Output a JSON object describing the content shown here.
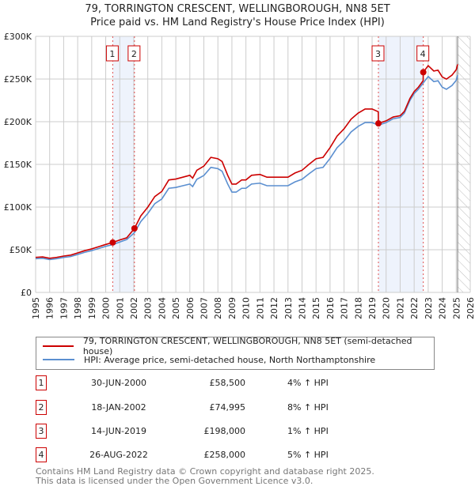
{
  "title": "79, TORRINGTON CRESCENT, WELLINGBOROUGH, NN8 5ET",
  "subtitle": "Price paid vs. HM Land Registry's House Price Index (HPI)",
  "chart_data": {
    "type": "line",
    "xlim": [
      1995,
      2026
    ],
    "ylim": [
      0,
      300000
    ],
    "yticks": [
      {
        "v": 0,
        "label": "£0"
      },
      {
        "v": 50000,
        "label": "£50K"
      },
      {
        "v": 100000,
        "label": "£100K"
      },
      {
        "v": 150000,
        "label": "£150K"
      },
      {
        "v": 200000,
        "label": "£200K"
      },
      {
        "v": 250000,
        "label": "£250K"
      },
      {
        "v": 300000,
        "label": "£300K"
      }
    ],
    "xticks": [
      "1995",
      "1996",
      "1997",
      "1998",
      "1999",
      "2000",
      "2001",
      "2002",
      "2003",
      "2004",
      "2005",
      "2006",
      "2007",
      "2008",
      "2009",
      "2010",
      "2011",
      "2012",
      "2013",
      "2014",
      "2015",
      "2016",
      "2017",
      "2018",
      "2019",
      "2020",
      "2021",
      "2022",
      "2023",
      "2024",
      "2025",
      "2026"
    ],
    "grid": true,
    "forecast_hatch_from": 2025.1,
    "highlight_bands": [
      [
        2000.5,
        2002.05
      ],
      [
        2019.45,
        2022.65
      ]
    ],
    "series": [
      {
        "name": "79, TORRINGTON CRESCENT, WELLINGBOROUGH, NN8 5ET (semi-detached house)",
        "color": "#cc0000",
        "x": [
          1995,
          1995.5,
          1996,
          1996.5,
          1997,
          1997.5,
          1998,
          1998.5,
          1999,
          1999.5,
          2000,
          2000.5,
          2001,
          2001.5,
          2002.05,
          2002.5,
          2003,
          2003.5,
          2004,
          2004.5,
          2005,
          2005.5,
          2006,
          2006.2,
          2006.5,
          2007,
          2007.5,
          2008,
          2008.3,
          2008.7,
          2009,
          2009.3,
          2009.7,
          2010,
          2010.4,
          2011,
          2011.5,
          2012.5,
          2013,
          2013.5,
          2014,
          2014.5,
          2015,
          2015.5,
          2016,
          2016.5,
          2017,
          2017.5,
          2018,
          2018.5,
          2019,
          2019.44,
          2019.45,
          2020,
          2020.5,
          2021,
          2021.3,
          2021.7,
          2022,
          2022.3,
          2022.64,
          2022.65,
          2023,
          2023.4,
          2023.7,
          2024,
          2024.3,
          2024.7,
          2025,
          2025.1
        ],
        "values": [
          41100,
          41600,
          40000,
          41100,
          42600,
          43700,
          46300,
          48900,
          51000,
          53600,
          56200,
          58500,
          61500,
          64000,
          74995,
          89600,
          99900,
          112300,
          118300,
          131800,
          132800,
          135000,
          137200,
          133900,
          143100,
          148000,
          158200,
          156600,
          153400,
          137200,
          126900,
          126900,
          131800,
          131800,
          137200,
          138200,
          135000,
          135000,
          135000,
          139900,
          143100,
          150100,
          156600,
          158200,
          169600,
          183100,
          191700,
          203000,
          210000,
          214900,
          214900,
          211700,
          198000,
          201000,
          205500,
          207000,
          212100,
          227300,
          235300,
          240400,
          248000,
          258000,
          265700,
          259400,
          260400,
          252500,
          249900,
          254600,
          260900,
          267200
        ]
      },
      {
        "name": "HPI: Average price, semi-detached house, North Northamptonshire",
        "color": "#5b8fd0",
        "x": [
          1995,
          1995.5,
          1996,
          1996.5,
          1997,
          1997.5,
          1998,
          1998.5,
          1999,
          1999.5,
          2000,
          2000.5,
          2001,
          2001.5,
          2002.05,
          2002.5,
          2003,
          2003.5,
          2004,
          2004.5,
          2005,
          2005.5,
          2006,
          2006.2,
          2006.5,
          2007,
          2007.5,
          2008,
          2008.3,
          2008.7,
          2009,
          2009.3,
          2009.7,
          2010,
          2010.4,
          2011,
          2011.5,
          2012.5,
          2013,
          2013.5,
          2014,
          2014.5,
          2015,
          2015.5,
          2016,
          2016.5,
          2017,
          2017.5,
          2018,
          2018.5,
          2019,
          2019.45,
          2020,
          2020.5,
          2021,
          2021.3,
          2021.7,
          2022,
          2022.3,
          2022.65,
          2023,
          2023.4,
          2023.7,
          2024,
          2024.3,
          2024.7,
          2025,
          2025.1
        ],
        "values": [
          39500,
          40000,
          38500,
          39500,
          41000,
          42000,
          44500,
          47000,
          49000,
          51500,
          54000,
          56000,
          59000,
          62000,
          70000,
          83000,
          92500,
          104000,
          109500,
          122000,
          123000,
          125000,
          127000,
          124000,
          132500,
          137000,
          146500,
          145000,
          142000,
          127000,
          117500,
          117500,
          122000,
          122000,
          127000,
          128000,
          125000,
          125000,
          125000,
          129500,
          132500,
          139000,
          145000,
          146500,
          157000,
          169500,
          177500,
          188000,
          194500,
          199000,
          199000,
          196000,
          199000,
          203500,
          205000,
          210000,
          225000,
          233000,
          238000,
          245500,
          253000,
          247000,
          248000,
          240500,
          238000,
          242500,
          248500,
          254500
        ]
      }
    ],
    "sales": [
      {
        "id": "1",
        "x": 2000.5,
        "value": 58500,
        "date": "30-JUN-2000",
        "price": "£58,500",
        "hpi": "4% ↑ HPI"
      },
      {
        "id": "2",
        "x": 2002.05,
        "value": 74995,
        "date": "18-JAN-2002",
        "price": "£74,995",
        "hpi": "8% ↑ HPI"
      },
      {
        "id": "3",
        "x": 2019.45,
        "value": 198000,
        "date": "14-JUN-2019",
        "price": "£198,000",
        "hpi": "1% ↑ HPI"
      },
      {
        "id": "4",
        "x": 2022.65,
        "value": 258000,
        "date": "26-AUG-2022",
        "price": "£258,000",
        "hpi": "5% ↑ HPI"
      }
    ]
  },
  "legend": {
    "red_label": "79, TORRINGTON CRESCENT, WELLINGBOROUGH, NN8 5ET (semi-detached house)",
    "blue_label": "HPI: Average price, semi-detached house, North Northamptonshire"
  },
  "footer": {
    "line1": "Contains HM Land Registry data © Crown copyright and database right 2025.",
    "line2": "This data is licensed under the Open Government Licence v3.0."
  }
}
